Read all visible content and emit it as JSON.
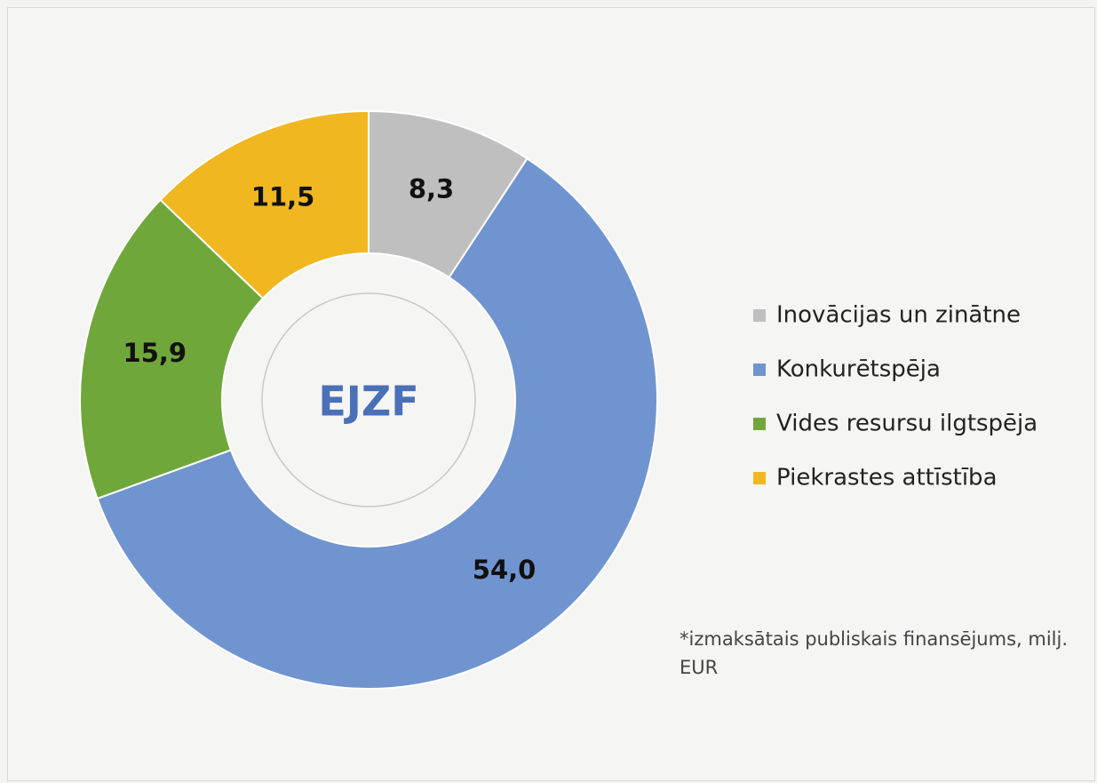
{
  "chart_data": {
    "type": "donut",
    "center_label": "EJZF",
    "categories": [
      "Inovācijas un zinātne",
      "Konkurētspēja",
      "Vides resursu ilgtspēja",
      "Piekrastes attīstība"
    ],
    "values": [
      8.3,
      54.0,
      15.9,
      11.5
    ],
    "value_labels": [
      "8,3",
      "54,0",
      "15,9",
      "11,5"
    ],
    "colors": [
      "#bfbfbf",
      "#7094cf",
      "#70a73a",
      "#f1b720"
    ],
    "legend": "right",
    "note": "*izmaksātais publiskais finansējums, milj. EUR"
  }
}
